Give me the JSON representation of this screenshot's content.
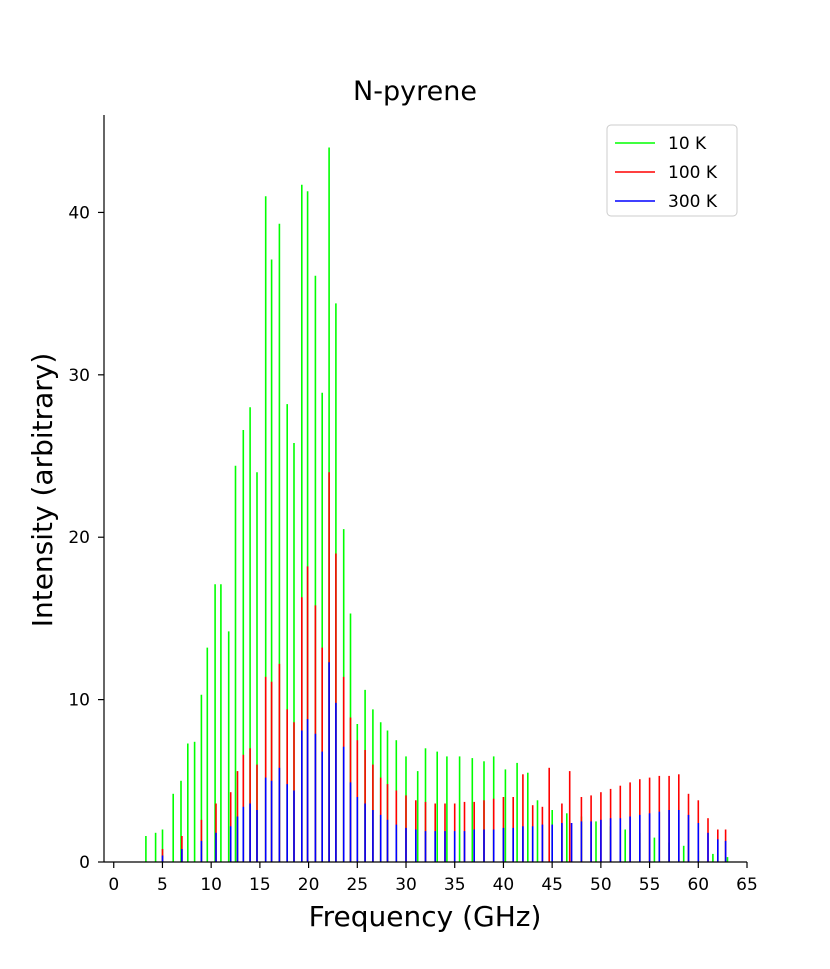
{
  "chart_data": {
    "type": "line",
    "title": "N-pyrene",
    "xlabel": "Frequency (GHz)",
    "ylabel": "Intensity (arbitrary)",
    "xlim": [
      -1,
      65
    ],
    "ylim": [
      0,
      46
    ],
    "xticks": [
      0,
      5,
      10,
      15,
      20,
      25,
      30,
      35,
      40,
      45,
      50,
      55,
      60,
      65
    ],
    "yticks": [
      0,
      10,
      20,
      30,
      40
    ],
    "legend_position": "top-right",
    "series": [
      {
        "name": "10 K",
        "color": "#00ff00",
        "peaks": [
          {
            "x": 3.3,
            "y": 1.6
          },
          {
            "x": 4.3,
            "y": 1.8
          },
          {
            "x": 5.0,
            "y": 2.0
          },
          {
            "x": 6.1,
            "y": 4.2
          },
          {
            "x": 6.9,
            "y": 5.0
          },
          {
            "x": 7.6,
            "y": 7.3
          },
          {
            "x": 8.3,
            "y": 7.4
          },
          {
            "x": 9.0,
            "y": 10.3
          },
          {
            "x": 9.6,
            "y": 13.2
          },
          {
            "x": 10.4,
            "y": 17.1
          },
          {
            "x": 11.0,
            "y": 17.1
          },
          {
            "x": 11.8,
            "y": 14.2
          },
          {
            "x": 12.5,
            "y": 24.4
          },
          {
            "x": 13.3,
            "y": 26.6
          },
          {
            "x": 14.0,
            "y": 28.0
          },
          {
            "x": 14.7,
            "y": 24.0
          },
          {
            "x": 15.6,
            "y": 41.0
          },
          {
            "x": 16.2,
            "y": 37.1
          },
          {
            "x": 17.0,
            "y": 39.3
          },
          {
            "x": 17.8,
            "y": 28.2
          },
          {
            "x": 18.5,
            "y": 25.8
          },
          {
            "x": 19.3,
            "y": 41.7
          },
          {
            "x": 19.9,
            "y": 41.3
          },
          {
            "x": 20.7,
            "y": 36.1
          },
          {
            "x": 21.4,
            "y": 28.9
          },
          {
            "x": 22.1,
            "y": 44.0
          },
          {
            "x": 22.8,
            "y": 34.4
          },
          {
            "x": 23.6,
            "y": 20.5
          },
          {
            "x": 24.3,
            "y": 15.3
          },
          {
            "x": 25.0,
            "y": 8.5
          },
          {
            "x": 25.8,
            "y": 10.6
          },
          {
            "x": 26.6,
            "y": 9.4
          },
          {
            "x": 27.4,
            "y": 8.6
          },
          {
            "x": 28.1,
            "y": 8.1
          },
          {
            "x": 29.0,
            "y": 7.5
          },
          {
            "x": 30.0,
            "y": 6.5
          },
          {
            "x": 31.2,
            "y": 5.6
          },
          {
            "x": 32.0,
            "y": 7.0
          },
          {
            "x": 33.2,
            "y": 6.8
          },
          {
            "x": 34.2,
            "y": 6.5
          },
          {
            "x": 35.5,
            "y": 6.5
          },
          {
            "x": 36.8,
            "y": 6.4
          },
          {
            "x": 38.0,
            "y": 6.2
          },
          {
            "x": 39.0,
            "y": 6.5
          },
          {
            "x": 40.2,
            "y": 5.7
          },
          {
            "x": 41.4,
            "y": 6.1
          },
          {
            "x": 42.5,
            "y": 5.5
          },
          {
            "x": 43.5,
            "y": 3.8
          },
          {
            "x": 45.0,
            "y": 3.2
          },
          {
            "x": 46.5,
            "y": 3.0
          },
          {
            "x": 48.0,
            "y": 2.8
          },
          {
            "x": 49.5,
            "y": 2.5
          },
          {
            "x": 51.0,
            "y": 2.2
          },
          {
            "x": 52.5,
            "y": 2.0
          },
          {
            "x": 54.0,
            "y": 1.8
          },
          {
            "x": 55.5,
            "y": 1.5
          },
          {
            "x": 57.0,
            "y": 1.2
          },
          {
            "x": 58.5,
            "y": 1.0
          },
          {
            "x": 60.0,
            "y": 0.7
          },
          {
            "x": 61.5,
            "y": 0.5
          },
          {
            "x": 63.0,
            "y": 0.3
          }
        ]
      },
      {
        "name": "100 K",
        "color": "#ff0000",
        "peaks": [
          {
            "x": 5.0,
            "y": 0.8
          },
          {
            "x": 7.0,
            "y": 1.6
          },
          {
            "x": 9.0,
            "y": 2.6
          },
          {
            "x": 10.5,
            "y": 3.6
          },
          {
            "x": 12.0,
            "y": 4.3
          },
          {
            "x": 12.7,
            "y": 5.6
          },
          {
            "x": 13.3,
            "y": 6.6
          },
          {
            "x": 14.0,
            "y": 7.0
          },
          {
            "x": 14.7,
            "y": 6.0
          },
          {
            "x": 15.6,
            "y": 11.4
          },
          {
            "x": 16.2,
            "y": 11.1
          },
          {
            "x": 17.0,
            "y": 12.2
          },
          {
            "x": 17.8,
            "y": 9.4
          },
          {
            "x": 18.5,
            "y": 8.6
          },
          {
            "x": 19.3,
            "y": 16.3
          },
          {
            "x": 19.9,
            "y": 18.2
          },
          {
            "x": 20.7,
            "y": 15.8
          },
          {
            "x": 21.4,
            "y": 13.2
          },
          {
            "x": 22.1,
            "y": 24.0
          },
          {
            "x": 22.8,
            "y": 19.0
          },
          {
            "x": 23.6,
            "y": 11.4
          },
          {
            "x": 24.3,
            "y": 8.9
          },
          {
            "x": 25.0,
            "y": 7.5
          },
          {
            "x": 25.8,
            "y": 6.9
          },
          {
            "x": 26.6,
            "y": 6.0
          },
          {
            "x": 27.4,
            "y": 5.2
          },
          {
            "x": 28.1,
            "y": 4.8
          },
          {
            "x": 29.0,
            "y": 4.4
          },
          {
            "x": 30.0,
            "y": 4.1
          },
          {
            "x": 31.0,
            "y": 3.8
          },
          {
            "x": 32.0,
            "y": 3.7
          },
          {
            "x": 33.0,
            "y": 3.6
          },
          {
            "x": 34.0,
            "y": 3.6
          },
          {
            "x": 35.0,
            "y": 3.6
          },
          {
            "x": 36.0,
            "y": 3.7
          },
          {
            "x": 37.0,
            "y": 3.7
          },
          {
            "x": 38.0,
            "y": 3.8
          },
          {
            "x": 39.0,
            "y": 3.9
          },
          {
            "x": 40.0,
            "y": 4.0
          },
          {
            "x": 41.0,
            "y": 4.0
          },
          {
            "x": 42.0,
            "y": 5.4
          },
          {
            "x": 43.0,
            "y": 3.5
          },
          {
            "x": 44.0,
            "y": 3.4
          },
          {
            "x": 44.7,
            "y": 5.8
          },
          {
            "x": 46.0,
            "y": 3.6
          },
          {
            "x": 46.8,
            "y": 5.6
          },
          {
            "x": 48.0,
            "y": 4.0
          },
          {
            "x": 49.0,
            "y": 4.1
          },
          {
            "x": 50.0,
            "y": 4.3
          },
          {
            "x": 51.0,
            "y": 4.5
          },
          {
            "x": 52.0,
            "y": 4.7
          },
          {
            "x": 53.0,
            "y": 4.9
          },
          {
            "x": 54.0,
            "y": 5.1
          },
          {
            "x": 55.0,
            "y": 5.2
          },
          {
            "x": 56.0,
            "y": 5.3
          },
          {
            "x": 57.0,
            "y": 5.3
          },
          {
            "x": 58.0,
            "y": 5.4
          },
          {
            "x": 59.0,
            "y": 4.2
          },
          {
            "x": 60.0,
            "y": 3.8
          },
          {
            "x": 61.0,
            "y": 2.7
          },
          {
            "x": 62.0,
            "y": 2.0
          },
          {
            "x": 62.8,
            "y": 2.0
          }
        ]
      },
      {
        "name": "300 K",
        "color": "#0000ff",
        "peaks": [
          {
            "x": 5.0,
            "y": 0.4
          },
          {
            "x": 7.0,
            "y": 0.8
          },
          {
            "x": 9.0,
            "y": 1.3
          },
          {
            "x": 10.5,
            "y": 1.8
          },
          {
            "x": 12.0,
            "y": 2.2
          },
          {
            "x": 12.7,
            "y": 2.8
          },
          {
            "x": 13.3,
            "y": 3.4
          },
          {
            "x": 14.0,
            "y": 3.6
          },
          {
            "x": 14.7,
            "y": 3.2
          },
          {
            "x": 15.6,
            "y": 5.2
          },
          {
            "x": 16.2,
            "y": 5.0
          },
          {
            "x": 17.0,
            "y": 5.8
          },
          {
            "x": 17.8,
            "y": 4.8
          },
          {
            "x": 18.5,
            "y": 4.4
          },
          {
            "x": 19.3,
            "y": 8.1
          },
          {
            "x": 19.9,
            "y": 8.8
          },
          {
            "x": 20.7,
            "y": 7.9
          },
          {
            "x": 21.4,
            "y": 6.8
          },
          {
            "x": 22.1,
            "y": 12.3
          },
          {
            "x": 22.8,
            "y": 9.8
          },
          {
            "x": 23.6,
            "y": 7.1
          },
          {
            "x": 24.3,
            "y": 4.9
          },
          {
            "x": 25.0,
            "y": 4.0
          },
          {
            "x": 25.8,
            "y": 3.6
          },
          {
            "x": 26.6,
            "y": 3.2
          },
          {
            "x": 27.4,
            "y": 2.9
          },
          {
            "x": 28.1,
            "y": 2.6
          },
          {
            "x": 29.0,
            "y": 2.3
          },
          {
            "x": 30.0,
            "y": 2.1
          },
          {
            "x": 31.0,
            "y": 2.0
          },
          {
            "x": 32.0,
            "y": 1.9
          },
          {
            "x": 33.0,
            "y": 1.9
          },
          {
            "x": 34.0,
            "y": 1.9
          },
          {
            "x": 35.0,
            "y": 1.9
          },
          {
            "x": 36.0,
            "y": 1.9
          },
          {
            "x": 37.0,
            "y": 2.0
          },
          {
            "x": 38.0,
            "y": 2.0
          },
          {
            "x": 39.0,
            "y": 2.0
          },
          {
            "x": 40.0,
            "y": 2.1
          },
          {
            "x": 41.0,
            "y": 2.1
          },
          {
            "x": 42.0,
            "y": 2.2
          },
          {
            "x": 43.0,
            "y": 2.2
          },
          {
            "x": 44.0,
            "y": 2.3
          },
          {
            "x": 45.0,
            "y": 2.3
          },
          {
            "x": 46.0,
            "y": 2.4
          },
          {
            "x": 47.0,
            "y": 2.4
          },
          {
            "x": 48.0,
            "y": 2.5
          },
          {
            "x": 49.0,
            "y": 2.5
          },
          {
            "x": 50.0,
            "y": 2.6
          },
          {
            "x": 51.0,
            "y": 2.7
          },
          {
            "x": 52.0,
            "y": 2.7
          },
          {
            "x": 53.0,
            "y": 2.8
          },
          {
            "x": 54.0,
            "y": 2.9
          },
          {
            "x": 55.0,
            "y": 3.0
          },
          {
            "x": 56.0,
            "y": 3.1
          },
          {
            "x": 57.0,
            "y": 3.2
          },
          {
            "x": 58.0,
            "y": 3.2
          },
          {
            "x": 59.0,
            "y": 2.9
          },
          {
            "x": 60.0,
            "y": 2.4
          },
          {
            "x": 61.0,
            "y": 1.8
          },
          {
            "x": 62.0,
            "y": 1.4
          },
          {
            "x": 62.8,
            "y": 1.3
          }
        ]
      }
    ]
  }
}
